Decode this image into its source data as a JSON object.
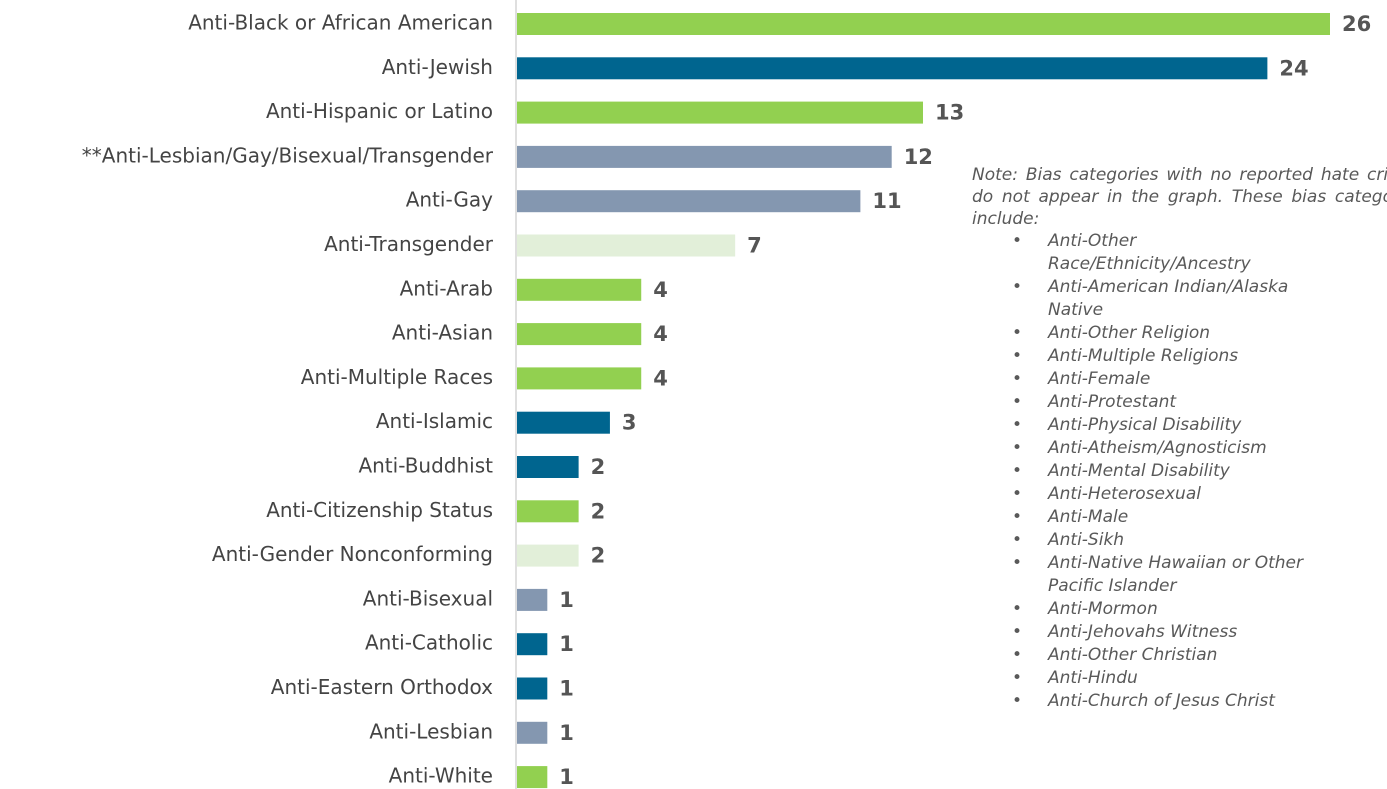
{
  "chart_data": {
    "type": "barh",
    "categories": [
      "Anti-Black or African American",
      "Anti-Jewish",
      "Anti-Hispanic or Latino",
      "**Anti-Lesbian/Gay/Bisexual/Transgender",
      "Anti-Gay",
      "Anti-Transgender",
      "Anti-Arab",
      "Anti-Asian",
      "Anti-Multiple Races",
      "Anti-Islamic",
      "Anti-Buddhist",
      "Anti-Citizenship Status",
      "Anti-Gender Nonconforming",
      "Anti-Bisexual",
      "Anti-Catholic",
      "Anti-Eastern Orthodox",
      "Anti-Lesbian",
      "Anti-White"
    ],
    "values": [
      26,
      24,
      13,
      12,
      11,
      7,
      4,
      4,
      4,
      3,
      2,
      2,
      2,
      1,
      1,
      1,
      1,
      1
    ],
    "colors": [
      "#92d050",
      "#00658f",
      "#92d050",
      "#8497b0",
      "#8497b0",
      "#e2efd9",
      "#92d050",
      "#92d050",
      "#92d050",
      "#00658f",
      "#00658f",
      "#92d050",
      "#e2efd9",
      "#8497b0",
      "#00658f",
      "#00658f",
      "#8497b0",
      "#92d050"
    ],
    "note": {
      "title": "Note: Bias categories with no reported hate crimes do not appear in the graph. These bias categories include:",
      "items": [
        "Anti-Other Race/Ethnicity/Ancestry",
        "Anti-American Indian/Alaska Native",
        "Anti-Other Religion",
        "Anti-Multiple Religions",
        "Anti-Female",
        "Anti-Protestant",
        "Anti-Physical Disability",
        "Anti-Atheism/Agnosticism",
        "Anti-Mental Disability",
        "Anti-Heterosexual",
        "Anti-Male",
        "Anti-Sikh",
        "Anti-Native Hawaiian or Other Pacific Islander",
        "Anti-Mormon",
        "Anti-Jehovahs Witness",
        "Anti-Other Christian",
        "Anti-Hindu",
        "Anti-Church of Jesus Christ"
      ]
    }
  }
}
